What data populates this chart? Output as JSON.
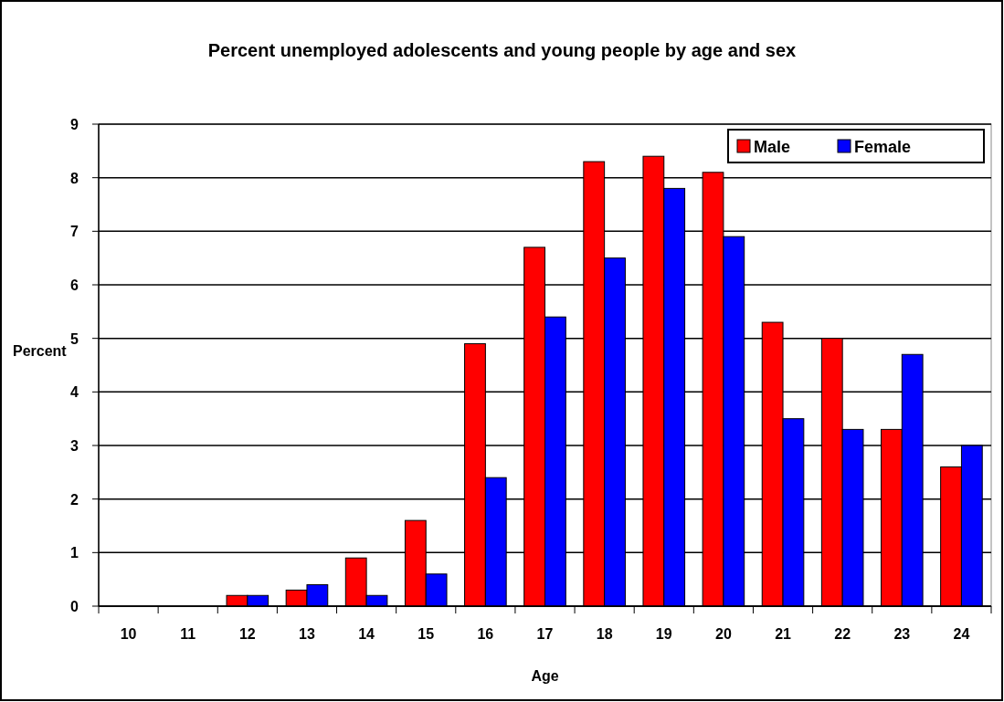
{
  "chart_data": {
    "type": "bar",
    "title": "Percent unemployed adolescents and young people by age and sex",
    "xlabel": "Age",
    "ylabel": "Percent",
    "categories": [
      "10",
      "11",
      "12",
      "13",
      "14",
      "15",
      "16",
      "17",
      "18",
      "19",
      "20",
      "21",
      "22",
      "23",
      "24"
    ],
    "series": [
      {
        "name": "Male",
        "color": "#ff0000",
        "values": [
          0,
          0,
          0.2,
          0.3,
          0.9,
          1.6,
          4.9,
          6.7,
          8.3,
          8.4,
          8.1,
          5.3,
          5.0,
          3.3,
          2.6
        ]
      },
      {
        "name": "Female",
        "color": "#0000ff",
        "values": [
          0,
          0,
          0.2,
          0.4,
          0.2,
          0.6,
          2.4,
          5.4,
          6.5,
          7.8,
          6.9,
          3.5,
          3.3,
          4.7,
          3.0
        ]
      }
    ],
    "ylim": [
      0,
      9
    ],
    "yticks": [
      0,
      1,
      2,
      3,
      4,
      5,
      6,
      7,
      8,
      9
    ],
    "grid": "y",
    "legend": "top right"
  }
}
